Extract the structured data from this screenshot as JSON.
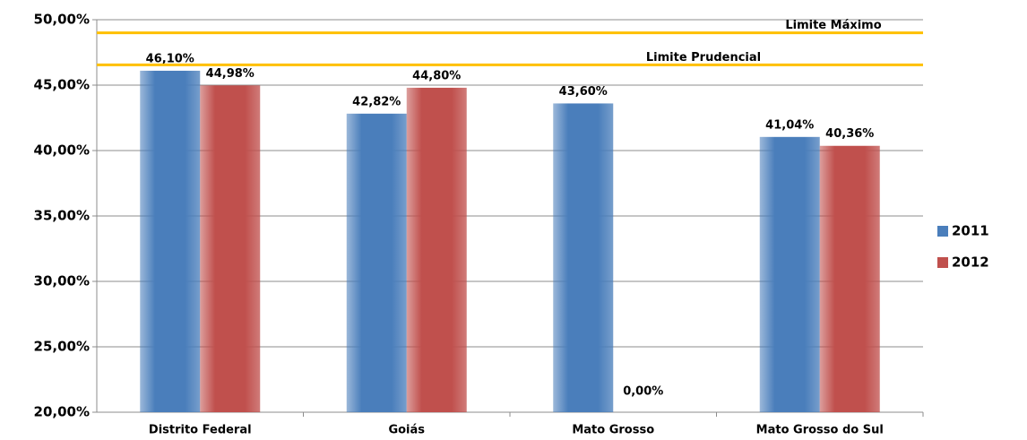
{
  "chart_data": {
    "type": "bar",
    "categories": [
      "Distrito Federal",
      "Goiás",
      "Mato Grosso",
      "Mato Grosso do Sul"
    ],
    "series": [
      {
        "name": "2011",
        "color": "#4a7ebb",
        "values": [
          46.1,
          42.82,
          43.6,
          41.04
        ],
        "value_labels": [
          "46,10%",
          "42,82%",
          "43,60%",
          "41,04%"
        ]
      },
      {
        "name": "2012",
        "color": "#c0504d",
        "values": [
          44.98,
          44.8,
          0.0,
          40.36
        ],
        "value_labels": [
          "44,98%",
          "44,80%",
          "0,00%",
          "40,36%"
        ]
      }
    ],
    "ylim": [
      20,
      50
    ],
    "yticks": [
      {
        "value": 20,
        "label": "20,00%"
      },
      {
        "value": 25,
        "label": "25,00%"
      },
      {
        "value": 30,
        "label": "30,00%"
      },
      {
        "value": 35,
        "label": "35,00%"
      },
      {
        "value": 40,
        "label": "40,00%"
      },
      {
        "value": 45,
        "label": "45,00%"
      },
      {
        "value": 50,
        "label": "50,00%"
      }
    ],
    "grid": true,
    "reference_lines": [
      {
        "label": "Limite Máximo",
        "value": 49,
        "color": "#ffc000"
      },
      {
        "label": "Limite Prudencial",
        "value": 46.55,
        "color": "#ffc000"
      }
    ],
    "legend": "right"
  }
}
